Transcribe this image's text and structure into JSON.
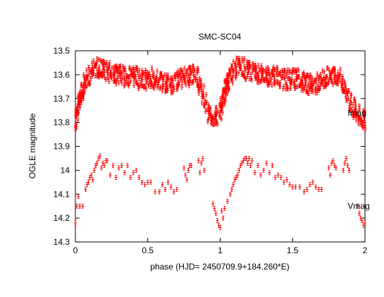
{
  "chart_data": {
    "type": "scatter",
    "title": "SMC-SC04",
    "xlabel": "phase (HJD= 2450709.9+184.260*E)",
    "ylabel": "OGLE magnitude",
    "xlim": [
      0,
      2
    ],
    "ylim": [
      13.5,
      14.3
    ],
    "y_inverted": true,
    "grid": false,
    "x_ticks": [
      "0",
      "0.5",
      "1",
      "1.5",
      "2"
    ],
    "x_tick_values": [
      0,
      0.5,
      1,
      1.5,
      2
    ],
    "y_ticks": [
      "13.5",
      "13.6",
      "13.7",
      "13.8",
      "13.9",
      "14",
      "14.1",
      "14.2",
      "14.3"
    ],
    "y_tick_values": [
      13.5,
      13.6,
      13.7,
      13.8,
      13.9,
      14.0,
      14.1,
      14.2,
      14.3
    ],
    "marker_color": "#ff0000",
    "series": [
      {
        "name": "Imag",
        "label_position": {
          "x": 1.88,
          "y": 13.76
        },
        "x": [
          0.0,
          0.01,
          0.02,
          0.03,
          0.04,
          0.05,
          0.06,
          0.08,
          0.1,
          0.12,
          0.14,
          0.16,
          0.18,
          0.2,
          0.22,
          0.24,
          0.26,
          0.28,
          0.3,
          0.32,
          0.34,
          0.36,
          0.38,
          0.4,
          0.42,
          0.44,
          0.46,
          0.48,
          0.5,
          0.52,
          0.54,
          0.56,
          0.58,
          0.6,
          0.62,
          0.64,
          0.66,
          0.68,
          0.7,
          0.72,
          0.74,
          0.76,
          0.78,
          0.8,
          0.82,
          0.84,
          0.86,
          0.88,
          0.9,
          0.92,
          0.94,
          0.96,
          0.98,
          1.0,
          1.01,
          1.02,
          1.03,
          1.04,
          1.05,
          1.06,
          1.08,
          1.1,
          1.12,
          1.14,
          1.16,
          1.18,
          1.2,
          1.22,
          1.24,
          1.26,
          1.28,
          1.3,
          1.32,
          1.34,
          1.36,
          1.38,
          1.4,
          1.42,
          1.44,
          1.46,
          1.48,
          1.5,
          1.52,
          1.54,
          1.56,
          1.58,
          1.6,
          1.62,
          1.64,
          1.66,
          1.68,
          1.7,
          1.72,
          1.74,
          1.76,
          1.78,
          1.8,
          1.82,
          1.84,
          1.86,
          1.88,
          1.9,
          1.92,
          1.94,
          1.96,
          1.98,
          2.0
        ],
        "y": [
          13.79,
          13.76,
          13.73,
          13.71,
          13.68,
          13.66,
          13.64,
          13.62,
          13.6,
          13.58,
          13.57,
          13.57,
          13.57,
          13.58,
          13.58,
          13.59,
          13.6,
          13.6,
          13.6,
          13.6,
          13.61,
          13.61,
          13.61,
          13.61,
          13.61,
          13.62,
          13.62,
          13.62,
          13.62,
          13.61,
          13.62,
          13.62,
          13.63,
          13.63,
          13.64,
          13.64,
          13.64,
          13.64,
          13.63,
          13.62,
          13.62,
          13.61,
          13.61,
          13.6,
          13.6,
          13.61,
          13.64,
          13.68,
          13.72,
          13.76,
          13.78,
          13.78,
          13.77,
          13.75,
          13.73,
          13.7,
          13.68,
          13.66,
          13.64,
          13.62,
          13.6,
          13.58,
          13.57,
          13.57,
          13.57,
          13.58,
          13.58,
          13.59,
          13.6,
          13.6,
          13.6,
          13.6,
          13.61,
          13.61,
          13.61,
          13.61,
          13.61,
          13.62,
          13.62,
          13.62,
          13.62,
          13.61,
          13.62,
          13.62,
          13.63,
          13.63,
          13.64,
          13.64,
          13.64,
          13.64,
          13.63,
          13.62,
          13.62,
          13.61,
          13.61,
          13.6,
          13.6,
          13.61,
          13.63,
          13.66,
          13.7,
          13.72,
          13.74,
          13.75,
          13.77,
          13.78,
          13.79
        ],
        "spread": 0.04
      },
      {
        "name": "Vmag",
        "label_position": {
          "x": 1.88,
          "y": 14.15
        },
        "x": [
          0.0,
          0.01,
          0.02,
          0.03,
          0.05,
          0.07,
          0.08,
          0.09,
          0.1,
          0.11,
          0.12,
          0.13,
          0.14,
          0.15,
          0.16,
          0.17,
          0.18,
          0.19,
          0.2,
          0.21,
          0.22,
          0.24,
          0.26,
          0.28,
          0.3,
          0.32,
          0.34,
          0.36,
          0.38,
          0.4,
          0.42,
          0.44,
          0.46,
          0.48,
          0.5,
          0.52,
          0.55,
          0.58,
          0.6,
          0.62,
          0.64,
          0.66,
          0.68,
          0.7,
          0.75,
          0.76,
          0.77,
          0.78,
          0.79,
          0.8,
          0.85,
          0.86,
          0.87,
          0.88,
          0.89,
          0.95,
          0.96,
          0.97,
          0.98,
          0.99,
          1.0,
          1.01,
          1.02,
          1.03,
          1.05,
          1.07,
          1.08,
          1.09,
          1.1,
          1.11,
          1.12,
          1.13,
          1.14,
          1.15,
          1.16,
          1.17,
          1.18,
          1.19,
          1.2,
          1.21,
          1.22,
          1.24,
          1.26,
          1.28,
          1.3,
          1.32,
          1.34,
          1.36,
          1.38,
          1.4,
          1.42,
          1.44,
          1.46,
          1.48,
          1.5,
          1.52,
          1.55,
          1.58,
          1.6,
          1.62,
          1.64,
          1.66,
          1.68,
          1.7,
          1.75,
          1.76,
          1.77,
          1.78,
          1.79,
          1.8,
          1.85,
          1.86,
          1.87,
          1.88,
          1.89,
          1.95,
          1.96,
          1.97,
          1.98,
          1.99,
          2.0
        ],
        "y": [
          14.22,
          14.15,
          14.11,
          14.15,
          14.15,
          14.08,
          14.06,
          14.05,
          14.03,
          14.02,
          14.04,
          14.0,
          13.98,
          13.97,
          13.95,
          13.94,
          13.99,
          13.97,
          13.98,
          13.96,
          13.96,
          14.02,
          13.98,
          14.03,
          13.99,
          13.98,
          14.01,
          13.98,
          14.03,
          14.01,
          14.0,
          14.03,
          14.05,
          14.06,
          14.05,
          14.05,
          14.09,
          14.09,
          14.06,
          14.08,
          14.05,
          14.07,
          14.09,
          14.08,
          13.99,
          14.02,
          14.04,
          14.0,
          13.98,
          13.98,
          13.96,
          14.01,
          13.97,
          13.95,
          14.0,
          14.14,
          14.16,
          14.18,
          14.21,
          14.23,
          14.24,
          14.17,
          14.2,
          14.16,
          14.13,
          14.1,
          14.08,
          14.06,
          14.04,
          14.03,
          14.02,
          14.0,
          13.98,
          13.97,
          13.96,
          13.95,
          13.95,
          13.97,
          13.95,
          13.98,
          13.96,
          14.01,
          13.98,
          14.02,
          14.0,
          13.97,
          14.01,
          13.98,
          14.03,
          14.02,
          14.03,
          14.05,
          14.04,
          14.06,
          14.07,
          14.07,
          14.07,
          14.09,
          14.08,
          14.06,
          14.05,
          14.07,
          14.08,
          14.08,
          13.99,
          14.02,
          13.97,
          13.96,
          13.98,
          13.99,
          14.0,
          13.97,
          13.95,
          13.98,
          14.0,
          14.15,
          14.18,
          14.2,
          14.21,
          14.23,
          14.22
        ],
        "spread": 0.005
      }
    ]
  }
}
